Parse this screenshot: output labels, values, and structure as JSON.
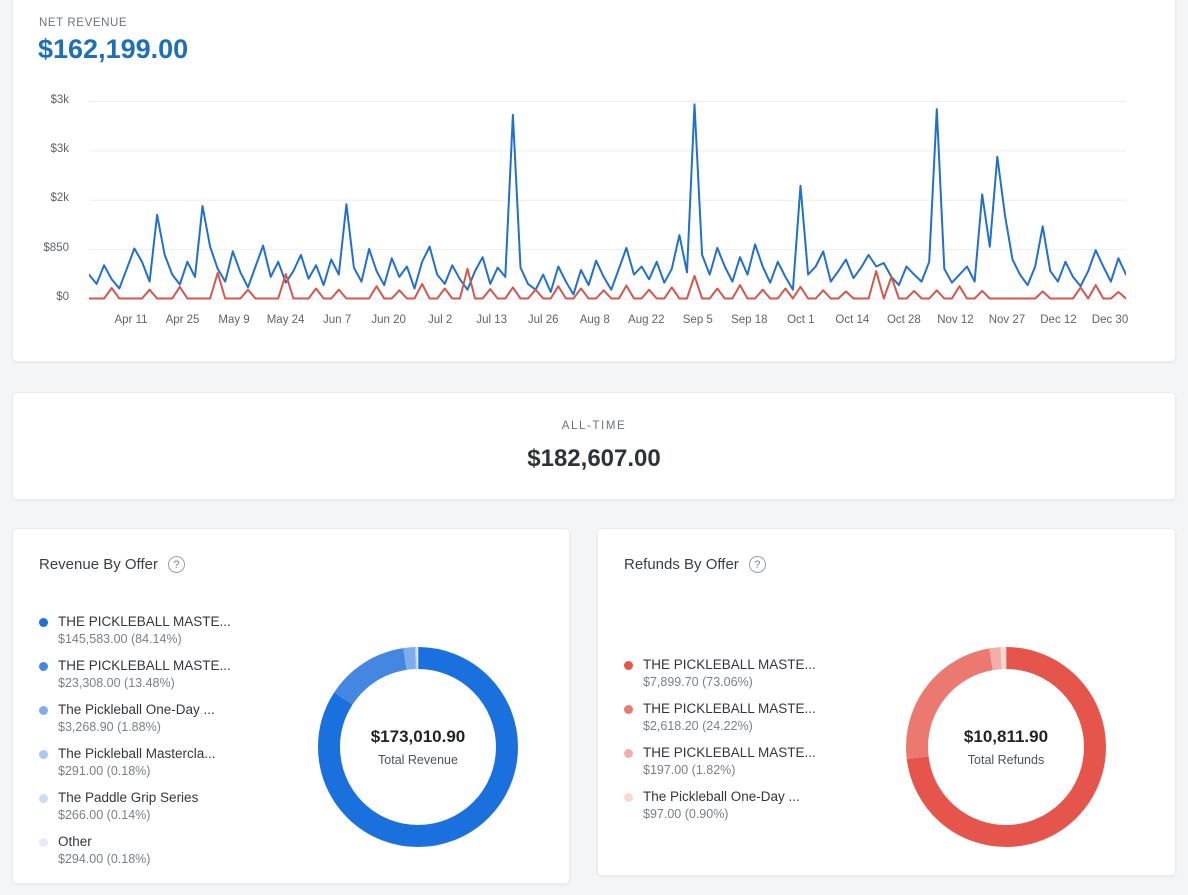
{
  "net_revenue": {
    "label": "NET REVENUE",
    "value": "$162,199.00"
  },
  "all_time": {
    "label": "ALL-TIME",
    "value": "$182,607.00"
  },
  "revenue_by_offer": {
    "title": "Revenue By Offer"
  },
  "refunds_by_offer": {
    "title": "Refunds By Offer"
  },
  "icons": {
    "help": "?"
  },
  "colors": {
    "grid": "#eceef0",
    "net_line": "#2170cc",
    "refund_line": "#d4574e"
  },
  "chart_data": [
    {
      "id": "net_revenue_daily",
      "type": "line",
      "title": "Net Revenue (daily, Apr - Dec)",
      "grid": true,
      "legend_position": "none",
      "ylim": [
        0,
        3400
      ],
      "y_ticks": [
        {
          "value": 0,
          "label": "$0"
        },
        {
          "value": 850,
          "label": "$850"
        },
        {
          "value": 1700,
          "label": "$2k"
        },
        {
          "value": 2550,
          "label": "$3k"
        },
        {
          "value": 3400,
          "label": "$3k"
        }
      ],
      "x_labels": [
        "Apr 11",
        "Apr 25",
        "May 9",
        "May 24",
        "Jun 7",
        "Jun 20",
        "Jul 2",
        "Jul 13",
        "Jul 26",
        "Aug 8",
        "Aug 22",
        "Sep 5",
        "Sep 18",
        "Oct 1",
        "Oct 14",
        "Oct 28",
        "Nov 12",
        "Nov 27",
        "Dec 12",
        "Dec 30"
      ],
      "series": [
        {
          "name": "Net revenue",
          "color": "#2170cc",
          "values": [
            420,
            260,
            580,
            340,
            180,
            520,
            870,
            640,
            300,
            1450,
            760,
            420,
            250,
            640,
            380,
            1600,
            900,
            520,
            300,
            820,
            460,
            200,
            560,
            920,
            380,
            640,
            280,
            480,
            760,
            350,
            580,
            240,
            680,
            420,
            1630,
            540,
            300,
            860,
            480,
            240,
            700,
            380,
            560,
            180,
            640,
            900,
            420,
            260,
            580,
            340,
            160,
            480,
            720,
            260,
            540,
            380,
            3170,
            540,
            260,
            160,
            420,
            120,
            560,
            300,
            80,
            500,
            240,
            660,
            380,
            160,
            520,
            880,
            420,
            560,
            340,
            640,
            280,
            520,
            1100,
            460,
            3350,
            760,
            420,
            880,
            560,
            300,
            720,
            420,
            940,
            560,
            280,
            640,
            380,
            160,
            1950,
            420,
            560,
            820,
            300,
            480,
            680,
            360,
            540,
            760,
            560,
            620,
            380,
            240,
            560,
            420,
            300,
            640,
            3270,
            520,
            280,
            420,
            560,
            300,
            1800,
            900,
            2450,
            1450,
            680,
            420,
            240,
            560,
            1250,
            480,
            300,
            640,
            380,
            220,
            480,
            840,
            560,
            300,
            700,
            420
          ]
        },
        {
          "name": "Refunds",
          "color": "#d4574e",
          "values": [
            8,
            8,
            8,
            190,
            8,
            8,
            8,
            8,
            160,
            8,
            8,
            8,
            210,
            8,
            8,
            8,
            8,
            450,
            8,
            8,
            8,
            160,
            8,
            8,
            8,
            8,
            430,
            8,
            8,
            8,
            180,
            8,
            8,
            160,
            8,
            8,
            8,
            8,
            220,
            8,
            8,
            150,
            8,
            8,
            260,
            8,
            8,
            180,
            8,
            8,
            520,
            8,
            8,
            170,
            8,
            8,
            200,
            8,
            8,
            160,
            8,
            8,
            220,
            8,
            8,
            180,
            8,
            8,
            150,
            8,
            8,
            230,
            8,
            8,
            160,
            8,
            8,
            200,
            8,
            8,
            400,
            8,
            8,
            180,
            8,
            8,
            240,
            8,
            8,
            160,
            8,
            8,
            180,
            8,
            210,
            8,
            8,
            150,
            8,
            8,
            130,
            8,
            8,
            8,
            480,
            8,
            380,
            8,
            8,
            140,
            8,
            8,
            150,
            8,
            8,
            220,
            8,
            8,
            140,
            8,
            8,
            8,
            8,
            8,
            8,
            8,
            130,
            8,
            8,
            8,
            8,
            200,
            8,
            240,
            8,
            8,
            120,
            8
          ]
        }
      ]
    },
    {
      "id": "revenue_by_offer",
      "type": "pie",
      "donut": true,
      "title": "Revenue By Offer",
      "center_value": "$173,010.90",
      "center_label": "Total Revenue",
      "segments": [
        {
          "label": "THE PICKLEBALL MASTE...",
          "value": "$145,583.00",
          "pct": 84.14,
          "detail": "$145,583.00 (84.14%)",
          "color": "#1a70dc"
        },
        {
          "label": "THE PICKLEBALL MASTE...",
          "value": "$23,308.00",
          "pct": 13.48,
          "detail": "$23,308.00 (13.48%)",
          "color": "#4387e2"
        },
        {
          "label": "The Pickleball One-Day ...",
          "value": "$3,268.90",
          "pct": 1.88,
          "detail": "$3,268.90 (1.88%)",
          "color": "#7fadec"
        },
        {
          "label": "The Pickleball Mastercla...",
          "value": "$291.00",
          "pct": 0.18,
          "detail": "$291.00 (0.18%)",
          "color": "#a9c7f2"
        },
        {
          "label": "The Paddle Grip Series",
          "value": "$266.00",
          "pct": 0.14,
          "detail": "$266.00 (0.14%)",
          "color": "#c9dbf7"
        },
        {
          "label": "Other",
          "value": "$294.00",
          "pct": 0.18,
          "detail": "$294.00 (0.18%)",
          "color": "#e2ecfb"
        }
      ]
    },
    {
      "id": "refunds_by_offer",
      "type": "pie",
      "donut": true,
      "title": "Refunds By Offer",
      "center_value": "$10,811.90",
      "center_label": "Total Refunds",
      "segments": [
        {
          "label": "THE PICKLEBALL MASTE...",
          "value": "$7,899.70",
          "pct": 73.06,
          "detail": "$7,899.70 (73.06%)",
          "color": "#e6554b"
        },
        {
          "label": "THE PICKLEBALL MASTE...",
          "value": "$2,618.20",
          "pct": 24.22,
          "detail": "$2,618.20 (24.22%)",
          "color": "#eb7970"
        },
        {
          "label": "THE PICKLEBALL MASTE...",
          "value": "$197.00",
          "pct": 1.82,
          "detail": "$197.00 (1.82%)",
          "color": "#f3aea8"
        },
        {
          "label": "The Pickleball One-Day ...",
          "value": "$97.00",
          "pct": 0.9,
          "detail": "$97.00 (0.90%)",
          "color": "#f9d8d4"
        }
      ]
    }
  ]
}
